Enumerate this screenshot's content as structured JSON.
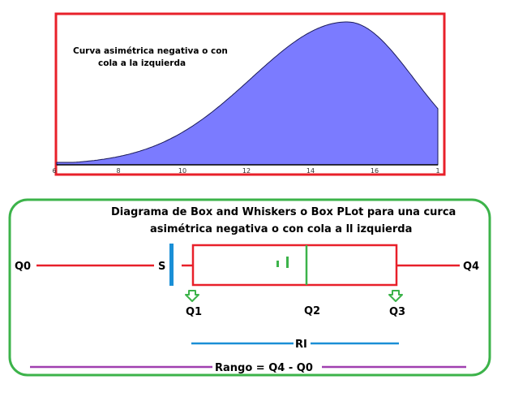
{
  "curve_panel": {
    "note_line1": "Curva asimétrica negativa o con",
    "note_line2": "cola a la izquierda",
    "ticks": [
      "6",
      "8",
      "10",
      "12",
      "14",
      "16",
      "1"
    ],
    "fill_color": "#7b7bff",
    "border_color": "#e8202a"
  },
  "boxplot_panel": {
    "title_line1": "Diagrama de Box and Whiskers o Box PLot para una curca",
    "title_line2": "asimétrica negativa o con cola a ll izquierda",
    "labels": {
      "q0": "Q0",
      "q4": "Q4",
      "s": "S",
      "q1": "Q1",
      "q2": "Q2",
      "q3": "Q3",
      "ri": "RI",
      "rango": "Rango = Q4 - Q0"
    },
    "colors": {
      "panel_border": "#3cb34a",
      "whisker": "#e8202a",
      "median": "#3cb34a",
      "s_marker": "#1a8fd6",
      "ri_line": "#1a8fd6",
      "rango_line": "#a040b0",
      "arrow": "#3cb34a"
    }
  }
}
